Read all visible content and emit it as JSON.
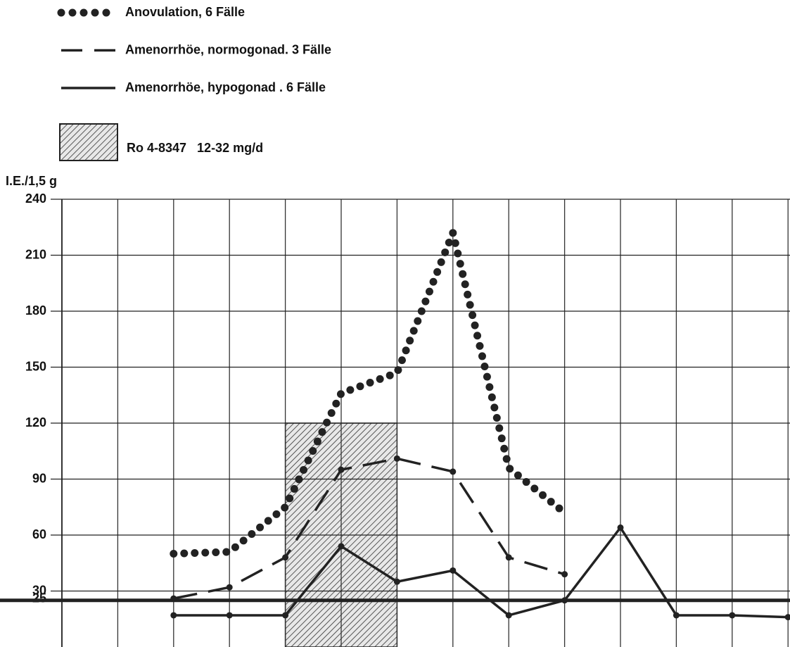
{
  "chart_data": {
    "type": "line",
    "y_label": "I.E./1,5 g",
    "categories": [
      null,
      null,
      null,
      null,
      null,
      null,
      null,
      null,
      null,
      null,
      null,
      null,
      null,
      null
    ],
    "series": [
      {
        "name": "Anovulation, 6 Fälle",
        "color": "#222222",
        "style": "dotted",
        "values": [
          null,
          null,
          50,
          51,
          75,
          136,
          147,
          222,
          96,
          72,
          null,
          null,
          null,
          null
        ]
      },
      {
        "name": "Amenorrhöe, normogonad. 3 Fälle",
        "color": "#222222",
        "style": "dashed",
        "values": [
          null,
          null,
          26,
          32,
          48,
          95,
          101,
          94,
          48,
          39,
          null,
          null,
          null,
          null
        ]
      },
      {
        "name": "Amenorrhöe, hypogonad . 6 Fälle",
        "color": "#222222",
        "style": "solid",
        "values": [
          null,
          null,
          17,
          17,
          17,
          54,
          35,
          41,
          17,
          25,
          64,
          17,
          17,
          16
        ]
      }
    ],
    "shaded_span": {
      "label": "Ro 4-8347   12-32 mg/d",
      "x": [
        4,
        6
      ],
      "y": [
        0,
        120
      ]
    },
    "reference_line": 25,
    "ylim": [
      0,
      240
    ],
    "yticks": [
      25,
      30,
      60,
      90,
      120,
      150,
      180,
      210,
      240
    ],
    "grid": true
  }
}
